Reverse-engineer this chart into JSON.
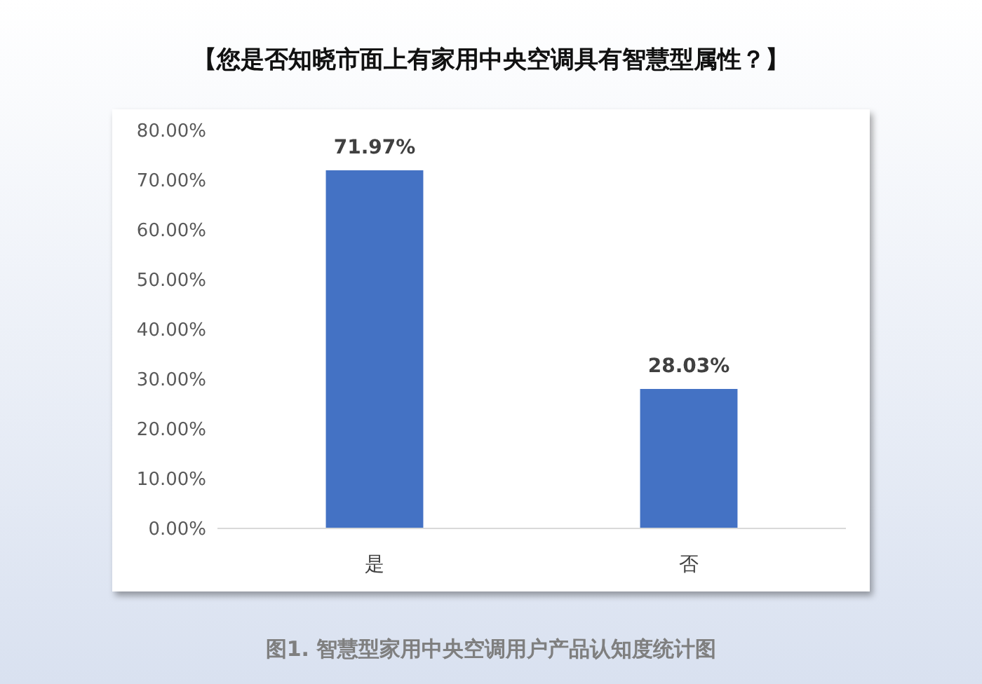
{
  "chart_data": {
    "type": "bar",
    "title": "【您是否知晓市面上有家用中央空调具有智慧型属性？】",
    "categories": [
      "是",
      "否"
    ],
    "values": [
      71.97,
      28.03
    ],
    "color": "#4472c4",
    "value_labels": [
      "71.97%",
      "28.03%"
    ],
    "ylim": [
      0,
      80
    ],
    "yticks": [
      {
        "value": 0,
        "label": "0.00%"
      },
      {
        "value": 10,
        "label": "10.00%"
      },
      {
        "value": 20,
        "label": "20.00%"
      },
      {
        "value": 30,
        "label": "30.00%"
      },
      {
        "value": 40,
        "label": "40.00%"
      },
      {
        "value": 50,
        "label": "50.00%"
      },
      {
        "value": 60,
        "label": "60.00%"
      },
      {
        "value": 70,
        "label": "70.00%"
      },
      {
        "value": 80,
        "label": "80.00%"
      }
    ],
    "grid": false,
    "annotations": [
      "图1. 智慧型家用中央空调用户产品认知度统计图"
    ]
  }
}
